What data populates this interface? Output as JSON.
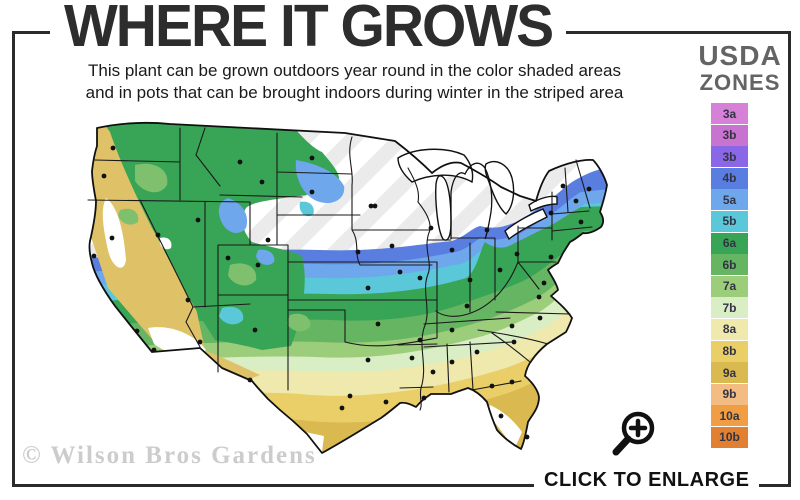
{
  "header": {
    "title": "WHERE IT GROWS",
    "subtitle_line1": "This plant can be grown outdoors year round in the color shaded areas",
    "subtitle_line2": "and in pots that can be brought indoors during winter in the striped area"
  },
  "legend": {
    "title_line1": "USDA",
    "title_line2": "ZONES",
    "zones": [
      {
        "label": "3a",
        "color": "#d780d7"
      },
      {
        "label": "3b",
        "color": "#c973d0"
      },
      {
        "label": "3b",
        "color": "#8a67e6"
      },
      {
        "label": "4b",
        "color": "#5a7de0"
      },
      {
        "label": "5a",
        "color": "#6ea7ec"
      },
      {
        "label": "5b",
        "color": "#5bc8da"
      },
      {
        "label": "6a",
        "color": "#38a556"
      },
      {
        "label": "6b",
        "color": "#66b562"
      },
      {
        "label": "7a",
        "color": "#9ccd7b"
      },
      {
        "label": "7b",
        "color": "#d9eec4"
      },
      {
        "label": "8a",
        "color": "#efe9ad"
      },
      {
        "label": "8b",
        "color": "#eace67"
      },
      {
        "label": "9a",
        "color": "#d9b950"
      },
      {
        "label": "9b",
        "color": "#f2bc83"
      },
      {
        "label": "10a",
        "color": "#f09d43"
      },
      {
        "label": "10b",
        "color": "#e08030"
      }
    ]
  },
  "map": {
    "region": "Contiguous United States",
    "map_colors": {
      "background": "#ffffff",
      "stripe_gray": "#ebebeb",
      "outline": "#111111",
      "state_line": "#1a1a1a",
      "city_dot": "#111111",
      "west_tan": "#dfc268",
      "west_light_green": "#7fc06e"
    },
    "city_dots": [
      [
        113,
        148
      ],
      [
        104,
        176
      ],
      [
        94,
        256
      ],
      [
        112,
        238
      ],
      [
        137,
        331
      ],
      [
        154,
        350
      ],
      [
        158,
        235
      ],
      [
        188,
        300
      ],
      [
        198,
        220
      ],
      [
        228,
        258
      ],
      [
        240,
        162
      ],
      [
        262,
        182
      ],
      [
        200,
        342
      ],
      [
        255,
        330
      ],
      [
        258,
        265
      ],
      [
        268,
        240
      ],
      [
        312,
        158
      ],
      [
        312,
        192
      ],
      [
        371,
        206
      ],
      [
        375,
        206
      ],
      [
        358,
        252
      ],
      [
        400,
        272
      ],
      [
        368,
        288
      ],
      [
        378,
        324
      ],
      [
        392,
        246
      ],
      [
        420,
        278
      ],
      [
        412,
        358
      ],
      [
        368,
        360
      ],
      [
        350,
        396
      ],
      [
        386,
        402
      ],
      [
        342,
        408
      ],
      [
        250,
        380
      ],
      [
        424,
        398
      ],
      [
        433,
        372
      ],
      [
        420,
        340
      ],
      [
        452,
        330
      ],
      [
        452,
        250
      ],
      [
        431,
        228
      ],
      [
        487,
        230
      ],
      [
        470,
        280
      ],
      [
        500,
        270
      ],
      [
        467,
        306
      ],
      [
        477,
        352
      ],
      [
        452,
        362
      ],
      [
        492,
        386
      ],
      [
        512,
        382
      ],
      [
        501,
        416
      ],
      [
        527,
        437
      ],
      [
        512,
        326
      ],
      [
        540,
        318
      ],
      [
        514,
        342
      ],
      [
        539,
        297
      ],
      [
        544,
        283
      ],
      [
        551,
        257
      ],
      [
        517,
        254
      ],
      [
        551,
        213
      ],
      [
        581,
        222
      ],
      [
        563,
        186
      ],
      [
        576,
        201
      ],
      [
        589,
        189
      ]
    ]
  },
  "footer": {
    "watermark": "© Wilson Bros Gardens",
    "enlarge_label": "CLICK TO ENLARGE"
  }
}
